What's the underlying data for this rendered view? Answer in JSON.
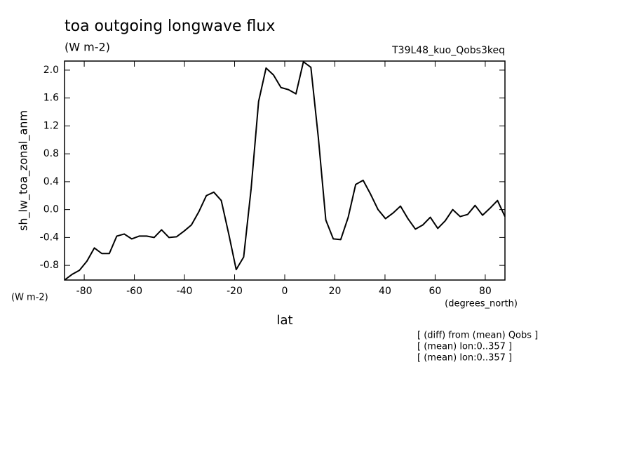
{
  "chart_data": {
    "type": "line",
    "title": "toa outgoing longwave flux",
    "subtitle": "(W m-2)",
    "model": "T39L48_kuo_Qobs3keq",
    "ylabel": "sh_lw_toa_zonal_anm",
    "y_units": "(W m-2)",
    "xlabel": "lat",
    "x_units": "(degrees_north)",
    "annotations": [
      "[ (diff) from (mean) Qobs ]",
      "[ (mean) lon:0..357 ]",
      "[ (mean) lon:0..357 ]"
    ],
    "x": [
      -87.86,
      -84.88,
      -81.9,
      -78.93,
      -75.95,
      -72.97,
      -69.99,
      -67.01,
      -64.04,
      -61.06,
      -58.08,
      -55.1,
      -52.12,
      -49.15,
      -46.17,
      -43.19,
      -40.21,
      -37.23,
      -34.26,
      -31.28,
      -28.3,
      -25.32,
      -22.34,
      -19.37,
      -16.39,
      -13.41,
      -10.43,
      -7.45,
      -4.48,
      -1.5,
      1.5,
      4.48,
      7.45,
      10.43,
      13.41,
      16.39,
      19.37,
      22.34,
      25.32,
      28.3,
      31.28,
      34.26,
      37.23,
      40.21,
      43.19,
      46.17,
      49.15,
      52.12,
      55.1,
      58.08,
      61.06,
      64.04,
      67.01,
      69.99,
      72.97,
      75.95,
      78.93,
      81.9,
      84.88,
      87.86
    ],
    "series": [
      {
        "color": "#000000",
        "values": [
          -1.01,
          -0.93,
          -0.87,
          -0.74,
          -0.55,
          -0.63,
          -0.63,
          -0.38,
          -0.35,
          -0.42,
          -0.38,
          -0.38,
          -0.4,
          -0.29,
          -0.4,
          -0.39,
          -0.31,
          -0.22,
          -0.03,
          0.2,
          0.25,
          0.13,
          -0.35,
          -0.86,
          -0.68,
          0.3,
          1.55,
          2.03,
          1.93,
          1.75,
          1.72,
          1.66,
          2.12,
          2.04,
          1.03,
          -0.15,
          -0.42,
          -0.43,
          -0.11,
          0.36,
          0.42,
          0.22,
          0.0,
          -0.13,
          -0.05,
          0.05,
          -0.13,
          -0.28,
          -0.22,
          -0.11,
          -0.27,
          -0.16,
          0.0,
          -0.1,
          -0.07,
          0.06,
          -0.08,
          0.02,
          0.13,
          -0.1
        ]
      }
    ],
    "xlim": [
      -87.86,
      87.86
    ],
    "ylim": [
      -1.01,
      2.13
    ],
    "xticks": [
      -80,
      -60,
      -40,
      -20,
      0,
      20,
      40,
      60,
      80
    ],
    "yticks": [
      {
        "value": -0.8,
        "label": "-0.8"
      },
      {
        "value": -0.4,
        "label": "-0.4"
      },
      {
        "value": 0,
        "label": "0.0"
      },
      {
        "value": 0.4,
        "label": "0.4"
      },
      {
        "value": 0.8,
        "label": "0.8"
      },
      {
        "value": 1.2,
        "label": "1.2"
      },
      {
        "value": 1.6,
        "label": "1.6"
      },
      {
        "value": 2.0,
        "label": "2.0"
      }
    ]
  }
}
